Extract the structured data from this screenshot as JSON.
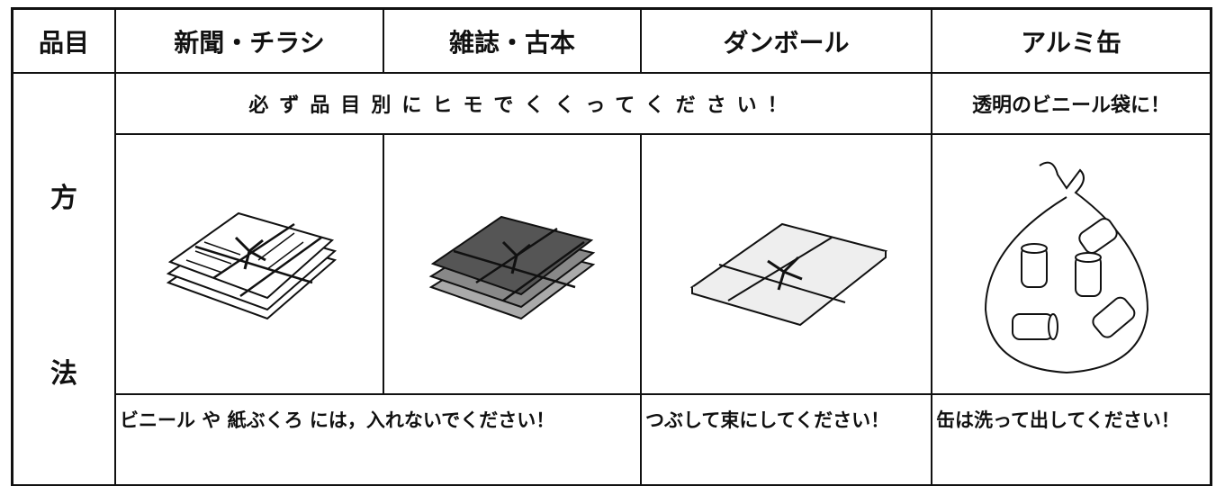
{
  "table": {
    "header": [
      "品目",
      "新聞・チラシ",
      "雑誌・古本",
      "ダンボール",
      "アルミ缶"
    ],
    "method_label": [
      "方",
      "法"
    ],
    "instruction": "必ず品目別にヒモでくくってください！",
    "can_instruction": "透明のビニール袋に！",
    "notes": [
      "ビニール や 紙ぶくろ には，入れないでください！",
      "つぶして束にしてください！",
      "缶は洗って出してください！"
    ]
  }
}
